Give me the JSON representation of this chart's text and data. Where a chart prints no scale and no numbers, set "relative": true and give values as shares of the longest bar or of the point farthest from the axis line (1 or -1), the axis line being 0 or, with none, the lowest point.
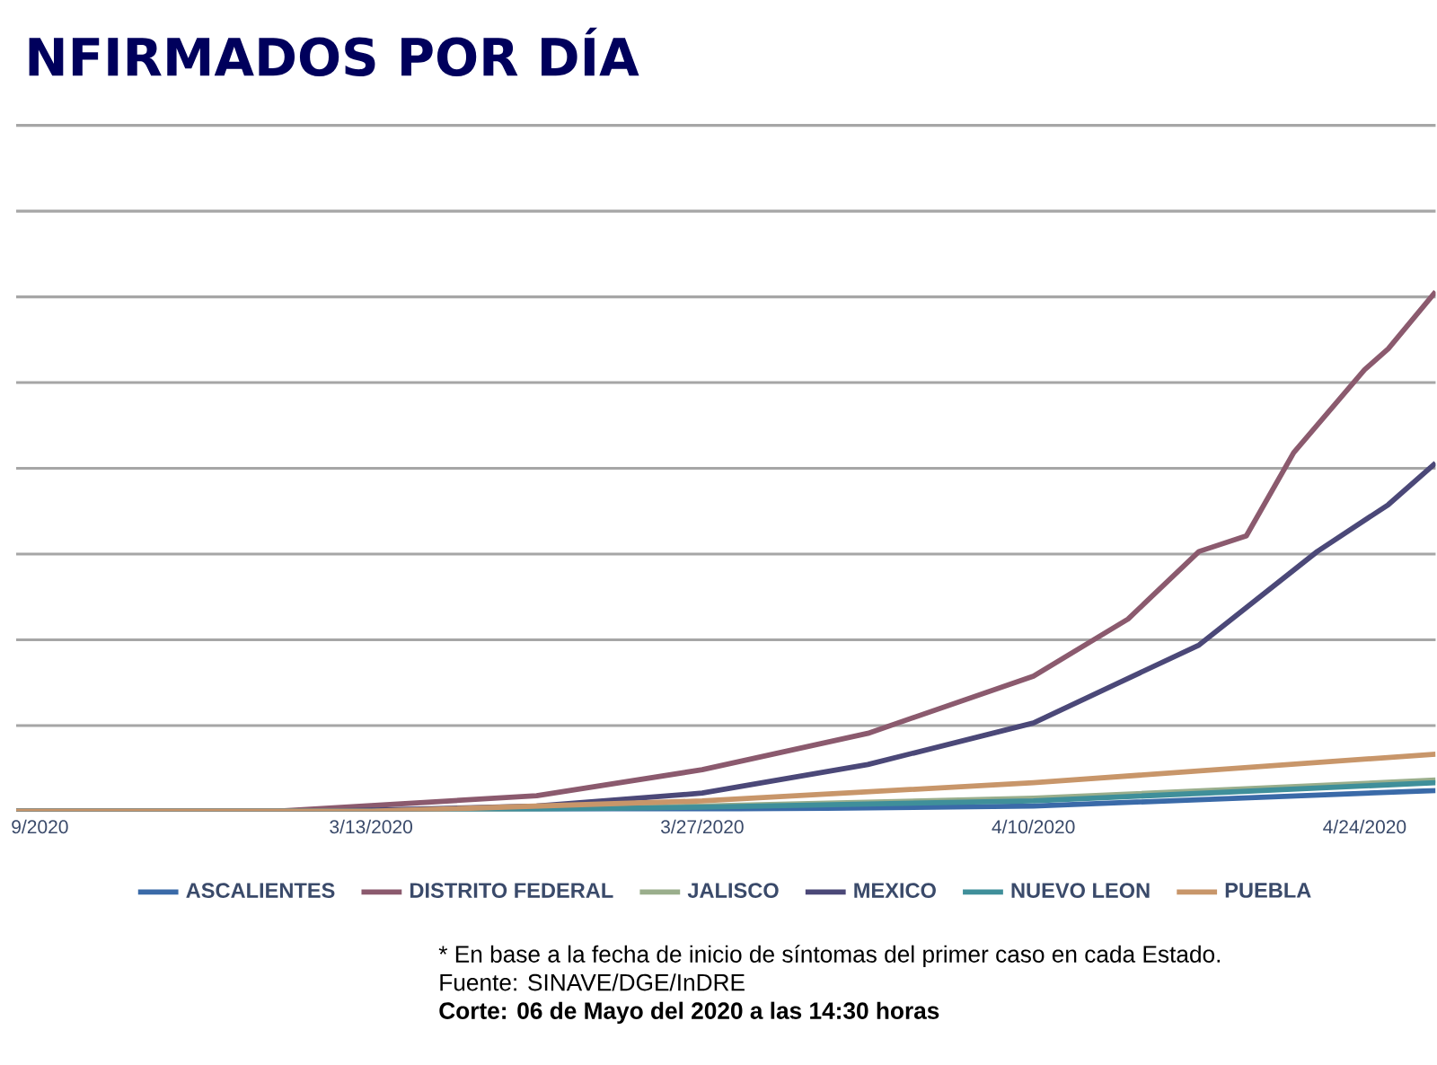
{
  "chart_data": {
    "type": "line",
    "title": "NFIRMADOS POR DÍA",
    "relative": true,
    "grid": "y",
    "legend": "bottom",
    "xlim": [
      "2020-02-27",
      "2020-04-27"
    ],
    "xticks": [
      {
        "value": "2020-02-28",
        "label": "9/2020"
      },
      {
        "value": "2020-03-13",
        "label": "3/13/2020"
      },
      {
        "value": "2020-03-27",
        "label": "3/27/2020"
      },
      {
        "value": "2020-04-10",
        "label": "4/10/2020"
      },
      {
        "value": "2020-04-24",
        "label": "4/24/2020"
      }
    ],
    "series": [
      {
        "name": "ASCALIENTES",
        "color": "#3a6aa8",
        "x": [
          "2020-02-27",
          "2020-03-20",
          "2020-04-10",
          "2020-04-27"
        ],
        "values": [
          0,
          0,
          0.01,
          0.04
        ]
      },
      {
        "name": "DISTRITO FEDERAL",
        "color": "#8b5a6e",
        "x": [
          "2020-02-27",
          "2020-03-09",
          "2020-03-20",
          "2020-03-27",
          "2020-04-03",
          "2020-04-10",
          "2020-04-14",
          "2020-04-17",
          "2020-04-19",
          "2020-04-21",
          "2020-04-24",
          "2020-04-25",
          "2020-04-27"
        ],
        "values": [
          0,
          0,
          0.03,
          0.08,
          0.15,
          0.26,
          0.37,
          0.5,
          0.53,
          0.69,
          0.85,
          0.89,
          1
        ]
      },
      {
        "name": "JALISCO",
        "color": "#9aae8c",
        "x": [
          "2020-02-27",
          "2020-03-13",
          "2020-03-27",
          "2020-04-10",
          "2020-04-27"
        ],
        "values": [
          0,
          0,
          0.01,
          0.025,
          0.06
        ]
      },
      {
        "name": "MEXICO",
        "color": "#4b4878",
        "x": [
          "2020-02-27",
          "2020-03-11",
          "2020-03-20",
          "2020-03-27",
          "2020-04-03",
          "2020-04-10",
          "2020-04-17",
          "2020-04-22",
          "2020-04-25",
          "2020-04-27"
        ],
        "values": [
          0,
          0,
          0.01,
          0.035,
          0.09,
          0.17,
          0.32,
          0.5,
          0.59,
          0.67
        ]
      },
      {
        "name": "NUEVO LEON",
        "color": "#3f8f9a",
        "x": [
          "2020-02-27",
          "2020-03-13",
          "2020-03-27",
          "2020-04-10",
          "2020-04-27"
        ],
        "values": [
          0,
          0,
          0.008,
          0.02,
          0.055
        ]
      },
      {
        "name": "PUEBLA",
        "color": "#c8966a",
        "x": [
          "2020-02-27",
          "2020-03-13",
          "2020-03-27",
          "2020-04-10",
          "2020-04-27"
        ],
        "values": [
          0,
          0,
          0.02,
          0.055,
          0.11
        ]
      }
    ],
    "annotations": [
      "* En base a la fecha de inicio de síntomas del primer caso en cada Estado.",
      "Fuente: SINAVE/DGE/InDRE",
      "Corte: 06 de Mayo del 2020 a las 14:30 horas"
    ]
  }
}
